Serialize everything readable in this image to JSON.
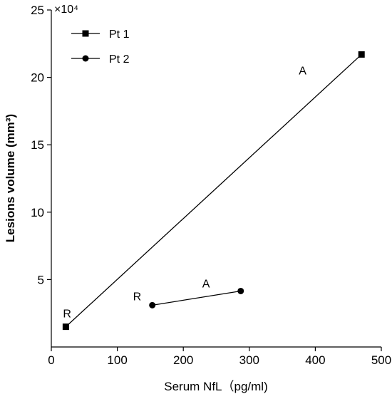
{
  "chart_data": {
    "type": "line",
    "title": "",
    "xlabel": "Serum NfL（pg/ml)",
    "ylabel": "Lesions volume (mm³)",
    "xlim": [
      0,
      500
    ],
    "ylim": [
      0,
      250000
    ],
    "x_ticks": [
      0,
      100,
      200,
      300,
      400,
      500
    ],
    "y_ticks": [
      50000,
      100000,
      150000,
      200000,
      250000
    ],
    "y_tick_labels": [
      "5",
      "10",
      "15",
      "20",
      "25"
    ],
    "y_multiplier_label": "×10⁴",
    "grid": false,
    "legend_position": "top-left",
    "series": [
      {
        "name": "Pt 1",
        "marker": "square",
        "points": [
          {
            "x": 22,
            "y": 15000,
            "label": "R"
          },
          {
            "x": 470,
            "y": 217000,
            "label": "A"
          }
        ]
      },
      {
        "name": "Pt 2",
        "marker": "circle",
        "points": [
          {
            "x": 153,
            "y": 31000,
            "label": "R"
          },
          {
            "x": 287,
            "y": 41500,
            "label": "A"
          }
        ]
      }
    ]
  }
}
